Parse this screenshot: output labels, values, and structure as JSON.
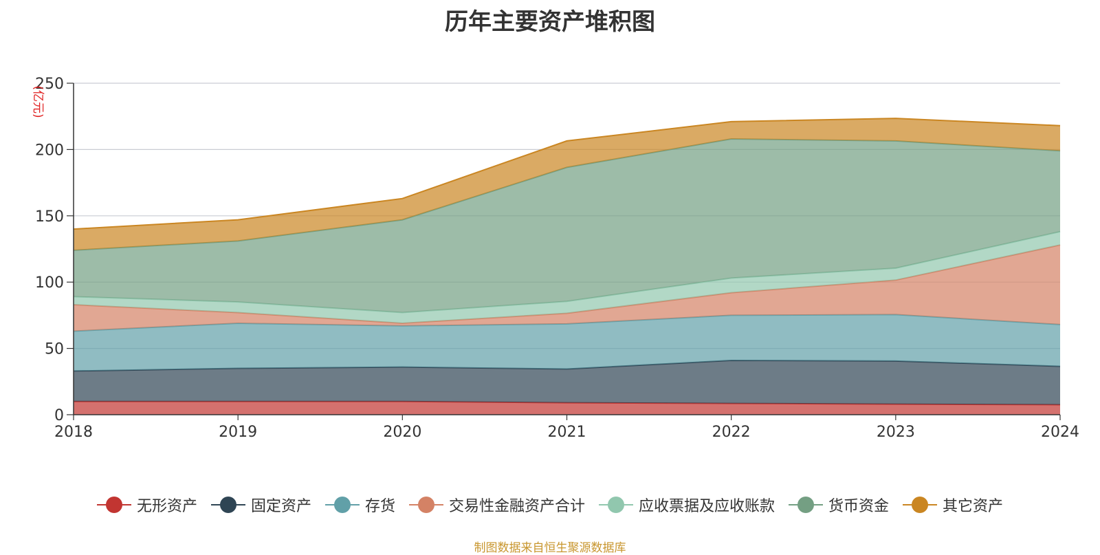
{
  "chart_data": {
    "type": "area",
    "stacked": true,
    "title": "历年主要资产堆积图",
    "unit_label": "(亿元)",
    "categories": [
      "2018",
      "2019",
      "2020",
      "2021",
      "2022",
      "2023",
      "2024"
    ],
    "ylim": [
      0,
      250
    ],
    "yticks": [
      "0",
      "50",
      "100",
      "150",
      "200",
      "250"
    ],
    "grid": true,
    "legend_position": "bottom",
    "series": [
      {
        "name": "无形资产",
        "color": "#c23531",
        "values": [
          10,
          10,
          10,
          9,
          8.5,
          8,
          7.5
        ]
      },
      {
        "name": "固定资产",
        "color": "#2f4554",
        "values": [
          23,
          25,
          26,
          25.5,
          32.5,
          32.5,
          29
        ]
      },
      {
        "name": "存货",
        "color": "#61a0a8",
        "values": [
          30,
          34,
          31,
          34,
          34,
          35,
          31.5
        ]
      },
      {
        "name": "交易性金融资产合计",
        "color": "#d48265",
        "values": [
          20,
          8,
          2,
          8,
          17,
          26,
          60
        ]
      },
      {
        "name": "应收票据及应收账款",
        "color": "#91c7ae",
        "values": [
          6,
          8,
          8,
          9,
          11,
          9,
          10
        ]
      },
      {
        "name": "货币资金",
        "color": "#749f83",
        "values": [
          35,
          46,
          70,
          101,
          105,
          96,
          61
        ]
      },
      {
        "name": "其它资产",
        "color": "#ca8622",
        "values": [
          16,
          16,
          16,
          20,
          13,
          17,
          19
        ]
      }
    ]
  },
  "source_text": "制图数据来自恒生聚源数据库"
}
